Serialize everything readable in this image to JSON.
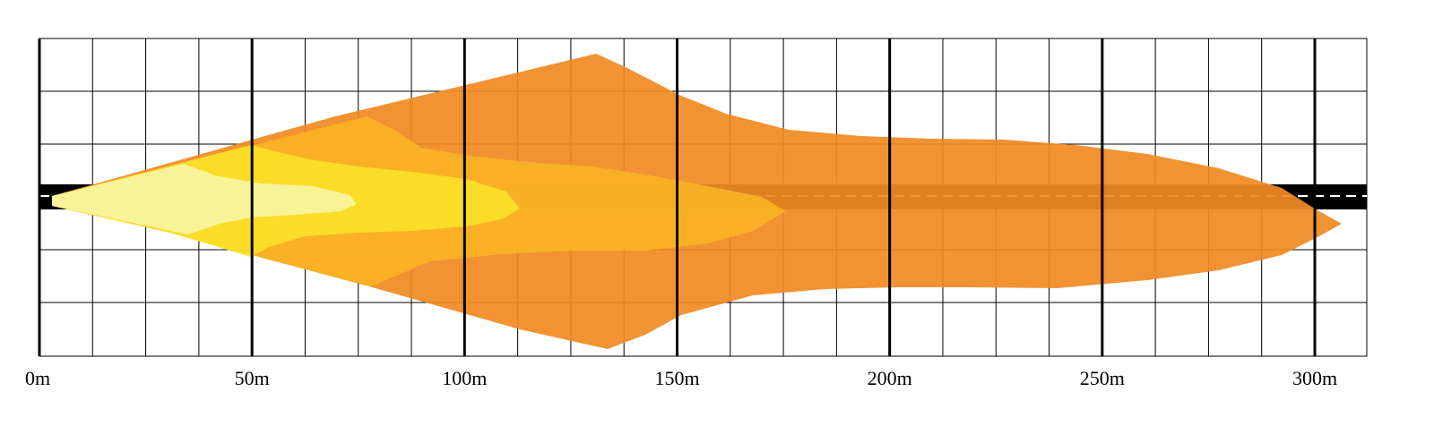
{
  "diagram": {
    "type": "light-beam-pattern",
    "x_axis": {
      "unit": "m",
      "min": 0,
      "max": 312.5,
      "ticks": [
        {
          "value": 0,
          "label": "0m"
        },
        {
          "value": 50,
          "label": "50m"
        },
        {
          "value": 100,
          "label": "100m"
        },
        {
          "value": 150,
          "label": "150m"
        },
        {
          "value": 200,
          "label": "200m"
        },
        {
          "value": 250,
          "label": "250m"
        },
        {
          "value": 300,
          "label": "300m"
        }
      ]
    },
    "grid": {
      "shown": true,
      "minor_step_m": 12.5,
      "major_step_m": 50
    },
    "road": {
      "color": "#000000",
      "centerline_color": "#ffffff",
      "centerline_style": "dashed"
    },
    "beam_zones": [
      {
        "name": "zone-outer",
        "color": "#f08a24",
        "reach_m": 307
      },
      {
        "name": "zone-mid",
        "color": "#fab423",
        "reach_m": 175
      },
      {
        "name": "zone-inner",
        "color": "#fbe128",
        "reach_m": 113
      },
      {
        "name": "zone-core",
        "color": "#f8f6a8",
        "reach_m": 75
      }
    ]
  }
}
